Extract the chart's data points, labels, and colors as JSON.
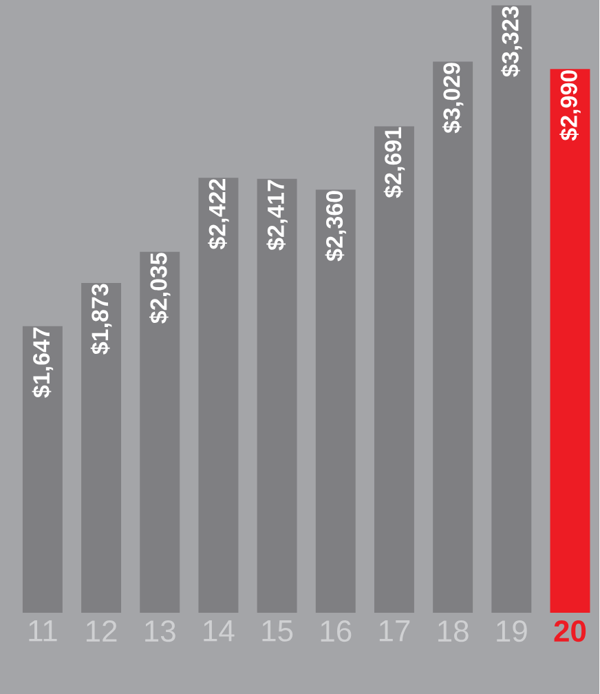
{
  "chart_data": {
    "type": "bar",
    "categories": [
      "11",
      "12",
      "13",
      "14",
      "15",
      "16",
      "17",
      "18",
      "19",
      "20"
    ],
    "values": [
      1647,
      1873,
      2035,
      2422,
      2417,
      2360,
      2691,
      3029,
      3323,
      2990
    ],
    "value_labels": [
      "$1,647",
      "$1,873",
      "$2,035",
      "$2,422",
      "$2,417",
      "$2,360",
      "$2,691",
      "$3,029",
      "$3,323",
      "$2,990"
    ],
    "colors": [
      "#7f7f82",
      "#7f7f82",
      "#7f7f82",
      "#7f7f82",
      "#7f7f82",
      "#7f7f82",
      "#7f7f82",
      "#7f7f82",
      "#7f7f82",
      "#ed1c24"
    ],
    "ylim": [
      150,
      3350
    ],
    "tick_labels": "x",
    "grid": false
  }
}
